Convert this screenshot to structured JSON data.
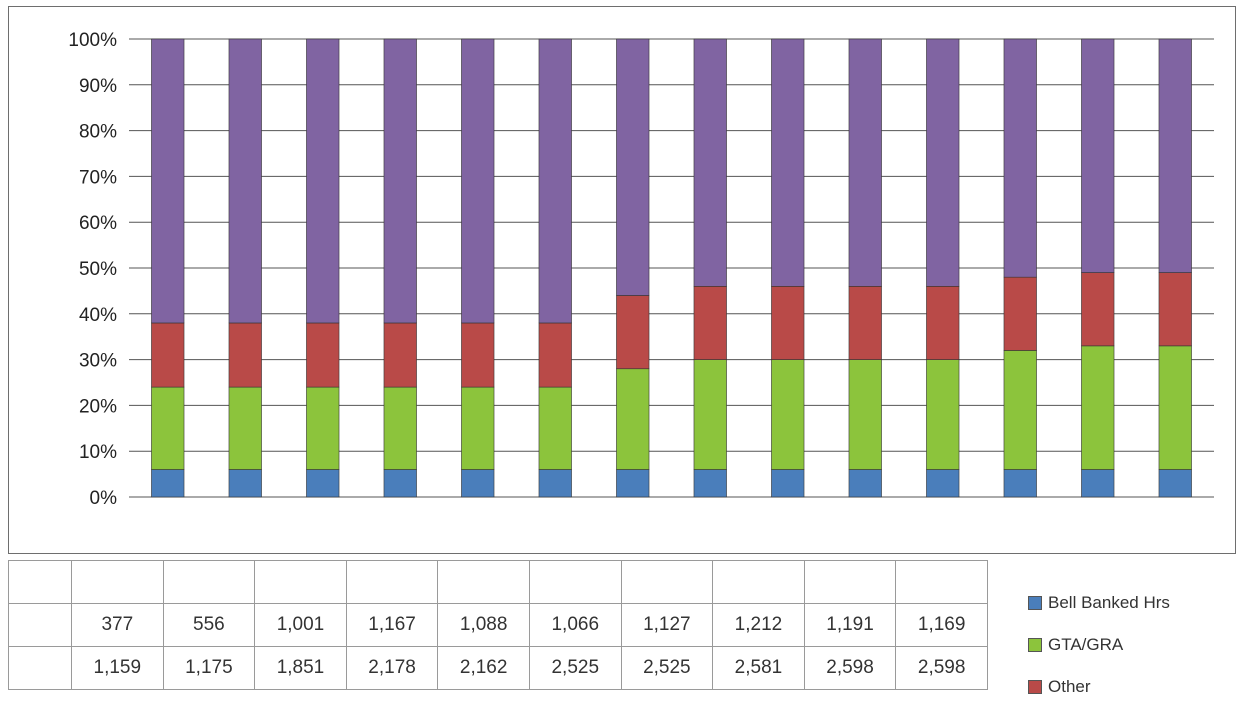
{
  "chart_data": {
    "type": "bar",
    "stacked": true,
    "percent_stacked": true,
    "categories": [
      "",
      "",
      "",
      "",
      "",
      "",
      "",
      "",
      "",
      "",
      "",
      "",
      "",
      ""
    ],
    "yticks": [
      "100%",
      "90%",
      "80%",
      "70%",
      "60%",
      "50%",
      "40%",
      "30%",
      "20%",
      "10%",
      "0%"
    ],
    "ylim": [
      0,
      100
    ],
    "grid": true,
    "legend_position": "right",
    "series": [
      {
        "name": "Bell Banked Hrs",
        "color": "#4a7ebb",
        "values": [
          6,
          6,
          6,
          6,
          6,
          6,
          6,
          6,
          6,
          6,
          6,
          6,
          6,
          6
        ]
      },
      {
        "name": "GTA/GRA",
        "color": "#8cc43c",
        "values": [
          18,
          18,
          18,
          18,
          18,
          18,
          22,
          24,
          24,
          24,
          24,
          26,
          27,
          27
        ]
      },
      {
        "name": "Other",
        "color": "#b94a48",
        "values": [
          14,
          14,
          14,
          14,
          14,
          14,
          16,
          16,
          16,
          16,
          16,
          16,
          16,
          16
        ]
      },
      {
        "name": "",
        "color": "#8064a2",
        "values": [
          62,
          62,
          62,
          62,
          62,
          62,
          56,
          54,
          54,
          54,
          54,
          52,
          51,
          51
        ]
      }
    ]
  },
  "table": {
    "rows": [
      {
        "label": "",
        "values": [
          "",
          "",
          "",
          "",
          "",
          "",
          "",
          "",
          "",
          ""
        ]
      },
      {
        "label": "",
        "values": [
          "377",
          "556",
          "1,001",
          "1,167",
          "1,088",
          "1,066",
          "1,127",
          "1,212",
          "1,191",
          "1,169"
        ]
      },
      {
        "label": "",
        "values": [
          "1,159",
          "1,175",
          "1,851",
          "2,178",
          "2,162",
          "2,525",
          "2,525",
          "2,581",
          "2,598",
          "2,598"
        ]
      }
    ]
  },
  "legend": [
    {
      "label": "Bell Banked Hrs",
      "color": "#4a7ebb"
    },
    {
      "label": "GTA/GRA",
      "color": "#8cc43c"
    },
    {
      "label": "Other",
      "color": "#b94a48"
    }
  ]
}
